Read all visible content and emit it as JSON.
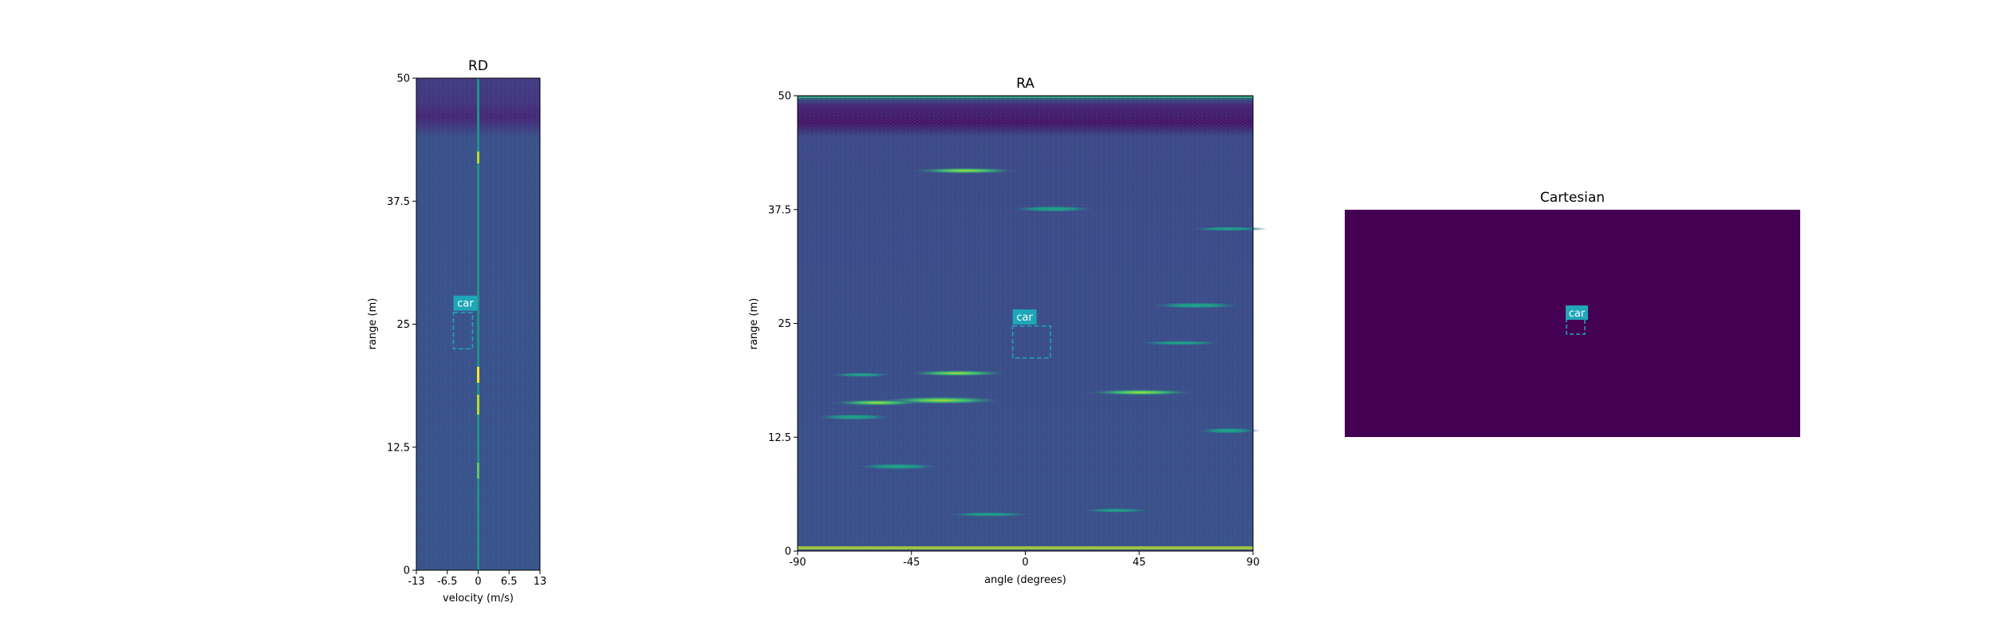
{
  "chart_data": [
    {
      "type": "heatmap",
      "title": "RD",
      "xlabel": "velocity (m/s)",
      "ylabel": "range (m)",
      "xlim": [
        -13,
        13
      ],
      "ylim": [
        0,
        50
      ],
      "xticks": [
        "-13",
        "-6.5",
        "0",
        "6.5",
        "13"
      ],
      "yticks": [
        "0",
        "12.5",
        "25",
        "37.5",
        "50"
      ],
      "colormap": "viridis",
      "annotations": [
        {
          "label": "car",
          "x_range": [
            -5.2,
            -1.2
          ],
          "y_range": [
            22.5,
            26.2
          ]
        }
      ]
    },
    {
      "type": "heatmap",
      "title": "RA",
      "xlabel": "angle (degrees)",
      "ylabel": "range (m)",
      "xlim": [
        -90,
        90
      ],
      "ylim": [
        0,
        50
      ],
      "xticks": [
        "-90",
        "-45",
        "0",
        "45",
        "90"
      ],
      "yticks": [
        "0",
        "12.5",
        "25",
        "37.5",
        "50"
      ],
      "colormap": "viridis",
      "annotations": [
        {
          "label": "car",
          "x_range": [
            -5,
            10
          ],
          "y_range": [
            21.2,
            24.7
          ]
        }
      ]
    },
    {
      "type": "heatmap",
      "title": "Cartesian",
      "colormap": "viridis",
      "background": "#440154",
      "annotations": [
        {
          "label": "car"
        }
      ]
    }
  ],
  "colors": {
    "box": "#1fa6b8",
    "viridis_low": "#440154",
    "viridis_mid": "#3b528b",
    "viridis_green": "#21918c",
    "viridis_high": "#fde725"
  }
}
